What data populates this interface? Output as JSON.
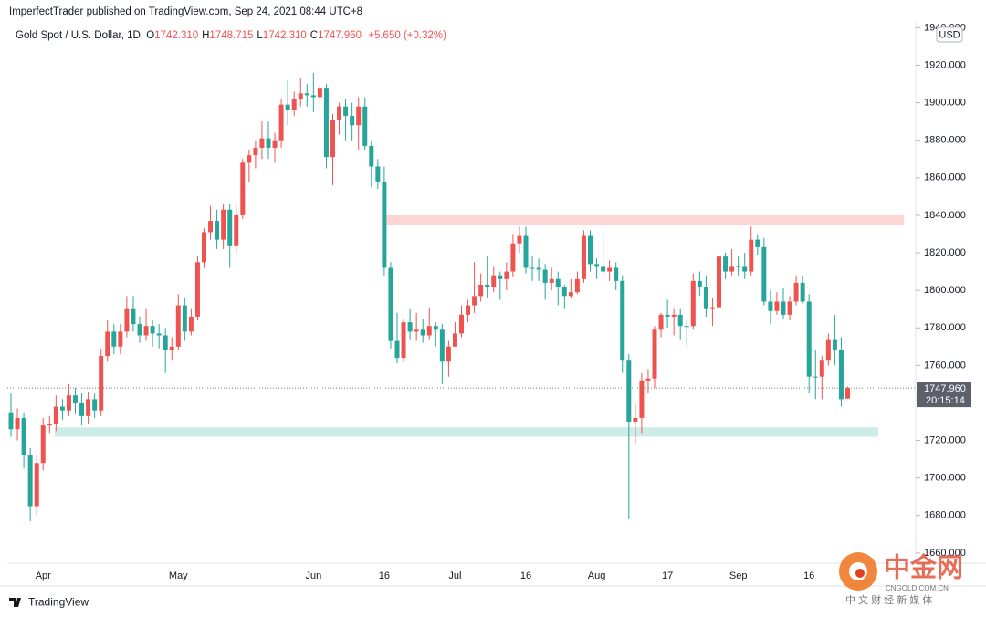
{
  "header": {
    "publisher": "ImperfectTrader published on TradingView.com, Sep 24, 2021 08:44 UTC+8",
    "ohlc": [
      {
        "label": "O",
        "value": "1742.310"
      },
      {
        "label": "H",
        "value": "1748.715"
      },
      {
        "label": "L",
        "value": "1742.310"
      },
      {
        "label": "C",
        "value": "1747.960"
      }
    ],
    "change": "+5.650 (+0.32%)"
  },
  "chart_data": {
    "type": "candlestick",
    "title": "Gold Spot / U.S. Dollar, 1D,",
    "currency": "USD",
    "last_price_label": "1747.960",
    "countdown": "20:15:14",
    "up_color": "#ef5350",
    "down_color": "#26a69a",
    "grid": false,
    "categories": [
      null,
      null,
      null,
      null,
      null,
      "Apr",
      null,
      null,
      null,
      null,
      null,
      null,
      null,
      null,
      null,
      null,
      null,
      null,
      null,
      null,
      null,
      null,
      null,
      null,
      null,
      null,
      "May",
      null,
      null,
      null,
      null,
      null,
      null,
      null,
      null,
      null,
      null,
      null,
      null,
      null,
      null,
      null,
      null,
      null,
      null,
      null,
      null,
      "Jun",
      null,
      null,
      null,
      null,
      null,
      null,
      null,
      null,
      null,
      null,
      "16",
      null,
      null,
      null,
      null,
      null,
      null,
      null,
      null,
      null,
      null,
      "Jul",
      null,
      null,
      null,
      null,
      null,
      null,
      null,
      null,
      null,
      null,
      "16",
      null,
      null,
      null,
      null,
      null,
      null,
      null,
      null,
      null,
      null,
      "Aug",
      null,
      null,
      null,
      null,
      null,
      null,
      null,
      null,
      null,
      null,
      "17",
      null,
      null,
      null,
      null,
      null,
      null,
      null,
      null,
      null,
      null,
      "Sep",
      null,
      null,
      null,
      null,
      null,
      null,
      null,
      null,
      null,
      null,
      "16",
      null,
      null,
      null,
      null,
      null,
      null
    ],
    "open": [
      1735,
      1726,
      1732,
      1712,
      1685,
      1708,
      1728,
      1729,
      1738,
      1736,
      1744,
      1740,
      1733,
      1742,
      1736,
      1765,
      1778,
      1770,
      1778,
      1790,
      1782,
      1776,
      1781,
      1777,
      1776,
      1768,
      1770,
      1792,
      1778,
      1786,
      1815,
      1831,
      1837,
      1827,
      1843,
      1824,
      1840,
      1868,
      1872,
      1876,
      1881,
      1876,
      1880,
      1899,
      1896,
      1902,
      1905,
      1904,
      1903,
      1908,
      1871,
      1891,
      1898,
      1893,
      1888,
      1898,
      1877,
      1866,
      1858,
      1812,
      1773,
      1764,
      1783,
      1778,
      1779,
      1776,
      1781,
      1779,
      1762,
      1770,
      1777,
      1787,
      1792,
      1797,
      1803,
      1802,
      1808,
      1806,
      1810,
      1825,
      1829,
      1812,
      1812,
      1811,
      1804,
      1806,
      1802,
      1797,
      1799,
      1806,
      1829,
      1814,
      1813,
      1810,
      1812,
      1805,
      1763,
      1730,
      1732,
      1752,
      1753,
      1779,
      1787,
      1786,
      1787,
      1781,
      1781,
      1805,
      1802,
      1790,
      1791,
      1818,
      1810,
      1813,
      1813,
      1810,
      1827,
      1823,
      1794,
      1789,
      1794,
      1787,
      1794,
      1804,
      1794,
      1754,
      1754,
      1763,
      1774,
      1768,
      1742.31
    ],
    "high": [
      1745,
      1737,
      1735,
      1716,
      1712,
      1732,
      1733,
      1744,
      1742,
      1750,
      1748,
      1745,
      1746,
      1745,
      1769,
      1784,
      1782,
      1782,
      1797,
      1797,
      1786,
      1790,
      1784,
      1782,
      1780,
      1775,
      1798,
      1796,
      1790,
      1818,
      1833,
      1845,
      1843,
      1846,
      1846,
      1845,
      1870,
      1875,
      1880,
      1890,
      1890,
      1884,
      1902,
      1912,
      1906,
      1913,
      1910,
      1916,
      1910,
      1910,
      1894,
      1900,
      1902,
      1900,
      1903,
      1903,
      1880,
      1870,
      1866,
      1815,
      1788,
      1785,
      1790,
      1788,
      1785,
      1791,
      1783,
      1782,
      1773,
      1783,
      1792,
      1795,
      1815,
      1809,
      1818,
      1813,
      1810,
      1815,
      1830,
      1834,
      1834,
      1818,
      1817,
      1814,
      1812,
      1810,
      1803,
      1806,
      1810,
      1832,
      1832,
      1817,
      1832,
      1816,
      1815,
      1808,
      1766,
      1740,
      1756,
      1758,
      1781,
      1788,
      1795,
      1790,
      1790,
      1784,
      1809,
      1810,
      1808,
      1796,
      1820,
      1820,
      1822,
      1818,
      1820,
      1834,
      1830,
      1828,
      1800,
      1799,
      1801,
      1797,
      1808,
      1808,
      1798,
      1768,
      1765,
      1777,
      1787,
      1775,
      1748.715
    ],
    "low": [
      1722,
      1720,
      1705,
      1677,
      1680,
      1704,
      1724,
      1725,
      1731,
      1733,
      1734,
      1728,
      1729,
      1732,
      1733,
      1762,
      1766,
      1766,
      1775,
      1778,
      1772,
      1773,
      1770,
      1769,
      1756,
      1763,
      1768,
      1773,
      1776,
      1784,
      1812,
      1827,
      1822,
      1822,
      1812,
      1820,
      1838,
      1858,
      1865,
      1870,
      1870,
      1868,
      1876,
      1888,
      1893,
      1898,
      1898,
      1895,
      1896,
      1865,
      1856,
      1883,
      1880,
      1880,
      1875,
      1875,
      1855,
      1854,
      1808,
      1769,
      1761,
      1762,
      1774,
      1773,
      1772,
      1774,
      1770,
      1750,
      1754,
      1770,
      1775,
      1783,
      1788,
      1794,
      1796,
      1799,
      1795,
      1800,
      1807,
      1820,
      1809,
      1805,
      1805,
      1795,
      1800,
      1792,
      1790,
      1796,
      1798,
      1804,
      1810,
      1806,
      1808,
      1805,
      1800,
      1756,
      1678,
      1718,
      1724,
      1745,
      1748,
      1775,
      1780,
      1776,
      1774,
      1770,
      1779,
      1797,
      1786,
      1781,
      1788,
      1806,
      1808,
      1808,
      1806,
      1808,
      1819,
      1792,
      1782,
      1787,
      1785,
      1784,
      1792,
      1793,
      1745,
      1742,
      1742,
      1760,
      1760,
      1738,
      1742.31
    ],
    "close": [
      1726,
      1732,
      1712,
      1685,
      1708,
      1728,
      1729,
      1738,
      1736,
      1744,
      1740,
      1733,
      1742,
      1736,
      1765,
      1778,
      1770,
      1778,
      1790,
      1782,
      1776,
      1781,
      1777,
      1776,
      1768,
      1770,
      1792,
      1778,
      1786,
      1815,
      1831,
      1837,
      1827,
      1843,
      1824,
      1840,
      1868,
      1872,
      1876,
      1881,
      1876,
      1880,
      1899,
      1896,
      1902,
      1905,
      1904,
      1903,
      1908,
      1871,
      1891,
      1898,
      1893,
      1888,
      1898,
      1877,
      1866,
      1858,
      1812,
      1773,
      1764,
      1783,
      1778,
      1779,
      1776,
      1781,
      1779,
      1762,
      1770,
      1777,
      1787,
      1792,
      1797,
      1803,
      1802,
      1808,
      1806,
      1810,
      1825,
      1829,
      1812,
      1812,
      1811,
      1804,
      1806,
      1802,
      1797,
      1799,
      1806,
      1829,
      1814,
      1813,
      1810,
      1812,
      1805,
      1763,
      1730,
      1732,
      1752,
      1753,
      1779,
      1787,
      1786,
      1787,
      1781,
      1781,
      1805,
      1802,
      1790,
      1791,
      1818,
      1810,
      1813,
      1813,
      1810,
      1827,
      1823,
      1794,
      1789,
      1794,
      1787,
      1794,
      1804,
      1794,
      1754,
      1754,
      1763,
      1774,
      1768,
      1742,
      1747.96
    ],
    "zones": [
      {
        "low": 1835,
        "high": 1840,
        "color": "#fdd5d3"
      },
      {
        "low": 1722,
        "high": 1727,
        "color": "#cdebe7"
      }
    ],
    "ylim": [
      1654.6,
      1943.1
    ],
    "yticks": [
      {
        "value": 1660,
        "label": "1660.000"
      },
      {
        "value": 1680,
        "label": "1680.000"
      },
      {
        "value": 1700,
        "label": "1700.000"
      },
      {
        "value": 1720,
        "label": "1720.000"
      },
      {
        "value": 1740,
        "label": "1740.000"
      },
      {
        "value": 1760,
        "label": "1760.000"
      },
      {
        "value": 1780,
        "label": "1780.000"
      },
      {
        "value": 1800,
        "label": "1800.000"
      },
      {
        "value": 1820,
        "label": "1820.000"
      },
      {
        "value": 1840,
        "label": "1840.000"
      },
      {
        "value": 1860,
        "label": "1860.000"
      },
      {
        "value": 1880,
        "label": "1880.000"
      },
      {
        "value": 1900,
        "label": "1900.000"
      },
      {
        "value": 1920,
        "label": "1920.000"
      },
      {
        "value": 1940,
        "label": "1940.000"
      }
    ]
  },
  "footer": {
    "brand": "TradingView"
  },
  "watermark": {
    "name": "中金网",
    "site": "CNGOLD.COM.CN",
    "slogan": "中 文 财 经 新 媒 体"
  }
}
